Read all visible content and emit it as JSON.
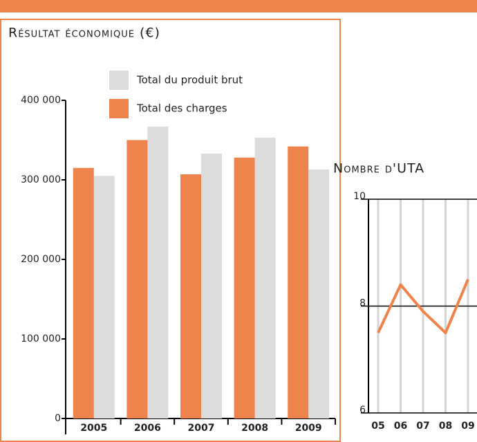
{
  "chart_data": [
    {
      "type": "bar",
      "title": "Résultat économique (€)",
      "categories": [
        "2005",
        "2006",
        "2007",
        "2008",
        "2009"
      ],
      "series": [
        {
          "name": "Total du produit brut",
          "color": "#dcdcdc",
          "values": [
            305000,
            367000,
            333000,
            353000,
            313000
          ]
        },
        {
          "name": "Total des charges",
          "color": "#ee834c",
          "values": [
            315000,
            350000,
            307000,
            328000,
            342000
          ]
        }
      ],
      "ylim": [
        0,
        400000
      ],
      "yticks": [
        {
          "value": 0,
          "label": "0"
        },
        {
          "value": 100000,
          "label": "100 000"
        },
        {
          "value": 200000,
          "label": "200 000"
        },
        {
          "value": 300000,
          "label": "300 000"
        },
        {
          "value": 400000,
          "label": "400 000"
        }
      ]
    },
    {
      "type": "line",
      "title": "Nombre d'UTA",
      "categories": [
        "05",
        "06",
        "07",
        "08",
        "09"
      ],
      "values": [
        7.5,
        8.4,
        7.9,
        7.5,
        8.5
      ],
      "color": "#ee834c",
      "ylim": [
        6,
        10
      ],
      "yticks": [
        6,
        8,
        10
      ],
      "grid": true
    }
  ]
}
